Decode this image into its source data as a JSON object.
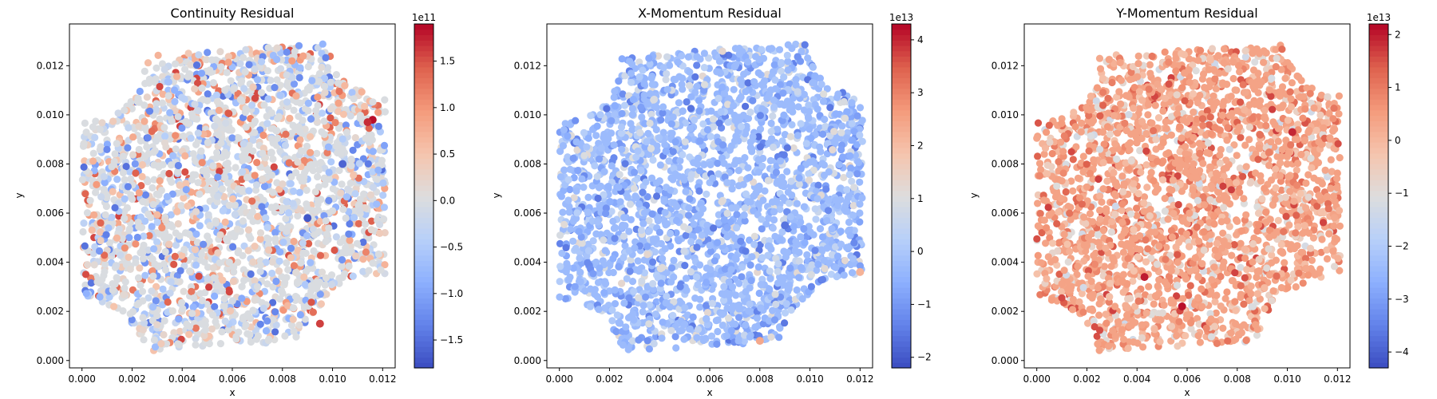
{
  "chart_data": [
    {
      "type": "scatter",
      "title": "Continuity Residual",
      "xlabel": "x",
      "ylabel": "y",
      "xlim": [
        -0.0005,
        0.0125
      ],
      "ylim": [
        -0.0003,
        0.0137
      ],
      "xticks": [
        0.0,
        0.002,
        0.004,
        0.006,
        0.008,
        0.01,
        0.012
      ],
      "xtick_labels": [
        "0.000",
        "0.002",
        "0.004",
        "0.006",
        "0.008",
        "0.010",
        "0.012"
      ],
      "yticks": [
        0.0,
        0.002,
        0.004,
        0.006,
        0.008,
        0.01,
        0.012
      ],
      "ytick_labels": [
        "0.000",
        "0.002",
        "0.004",
        "0.006",
        "0.008",
        "0.010",
        "0.012"
      ],
      "colormap": "coolwarm",
      "colorbar": {
        "range": [
          -1.8,
          1.9
        ],
        "ticks": [
          -1.5,
          -1.0,
          -0.5,
          0.0,
          0.5,
          1.0,
          1.5
        ],
        "tick_labels": [
          "−1.5",
          "−1.0",
          "−0.5",
          "0.0",
          "0.5",
          "1.0",
          "1.5"
        ],
        "offset_label": "1e11"
      },
      "base_value": 0.0,
      "noise": [
        {
          "min": -1.5,
          "max": 1.6,
          "weight": 2
        }
      ],
      "hot_spots": [
        {
          "x": 0.0116,
          "y": 0.0098,
          "value": 1.85
        },
        {
          "x": 0.0114,
          "y": 0.0097,
          "value": 1.7
        },
        {
          "x": 0.0095,
          "y": 0.0015,
          "value": 1.6
        },
        {
          "x": 0.009,
          "y": 0.0058,
          "value": -1.7
        },
        {
          "x": 0.0104,
          "y": 0.008,
          "value": -1.6
        }
      ]
    },
    {
      "type": "scatter",
      "title": "X-Momentum Residual",
      "xlabel": "x",
      "ylabel": "y",
      "xlim": [
        -0.0005,
        0.0125
      ],
      "ylim": [
        -0.0003,
        0.0137
      ],
      "xticks": [
        0.0,
        0.002,
        0.004,
        0.006,
        0.008,
        0.01,
        0.012
      ],
      "xtick_labels": [
        "0.000",
        "0.002",
        "0.004",
        "0.006",
        "0.008",
        "0.010",
        "0.012"
      ],
      "yticks": [
        0.0,
        0.002,
        0.004,
        0.006,
        0.008,
        0.01,
        0.012
      ],
      "ytick_labels": [
        "0.000",
        "0.002",
        "0.004",
        "0.006",
        "0.008",
        "0.010",
        "0.012"
      ],
      "colormap": "coolwarm",
      "colorbar": {
        "range": [
          -2.2,
          4.3
        ],
        "ticks": [
          -2,
          -1,
          0,
          1,
          2,
          3,
          4
        ],
        "tick_labels": [
          "−2",
          "−1",
          "0",
          "1",
          "2",
          "3",
          "4"
        ],
        "offset_label": "1e13"
      },
      "base_value": -0.3,
      "noise": [
        {
          "min": -1.6,
          "max": 1.3,
          "weight": 2
        }
      ],
      "hot_spots": [
        {
          "x": 0.008,
          "y": 0.0008,
          "value": 2.4
        },
        {
          "x": 0.012,
          "y": 0.0036,
          "value": 2.2
        },
        {
          "x": 0.009,
          "y": 0.0055,
          "value": -1.6
        }
      ]
    },
    {
      "type": "scatter",
      "title": "Y-Momentum Residual",
      "xlabel": "x",
      "ylabel": "y",
      "xlim": [
        -0.0005,
        0.0125
      ],
      "ylim": [
        -0.0003,
        0.0137
      ],
      "xticks": [
        0.0,
        0.002,
        0.004,
        0.006,
        0.008,
        0.01,
        0.012
      ],
      "xtick_labels": [
        "0.000",
        "0.002",
        "0.004",
        "0.006",
        "0.008",
        "0.010",
        "0.012"
      ],
      "yticks": [
        0.0,
        0.002,
        0.004,
        0.006,
        0.008,
        0.01,
        0.012
      ],
      "ytick_labels": [
        "0.000",
        "0.002",
        "0.004",
        "0.006",
        "0.008",
        "0.010",
        "0.012"
      ],
      "colormap": "coolwarm",
      "colorbar": {
        "range": [
          -4.3,
          2.2
        ],
        "ticks": [
          -4,
          -3,
          -2,
          -1,
          0,
          1,
          2
        ],
        "tick_labels": [
          "−4",
          "−3",
          "−2",
          "−1",
          "0",
          "1",
          "2"
        ],
        "offset_label": "1e13"
      },
      "base_value": 0.4,
      "noise": [
        {
          "min": -1.4,
          "max": 1.7,
          "weight": 2
        }
      ],
      "hot_spots": [
        {
          "x": 0.0058,
          "y": 0.0022,
          "value": 2.1
        },
        {
          "x": 0.0043,
          "y": 0.0034,
          "value": 2.0
        },
        {
          "x": 0.0102,
          "y": 0.0093,
          "value": 1.9
        }
      ]
    }
  ]
}
